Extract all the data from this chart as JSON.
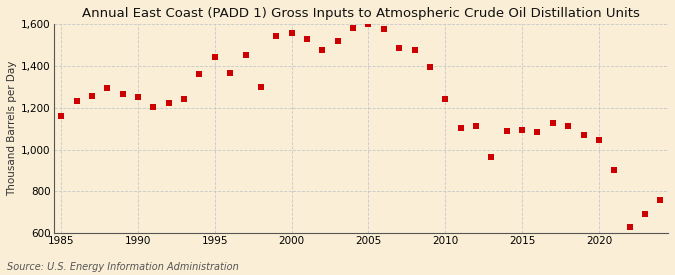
{
  "title": "Annual East Coast (PADD 1) Gross Inputs to Atmospheric Crude Oil Distillation Units",
  "ylabel": "Thousand Barrels per Day",
  "source": "Source: U.S. Energy Information Administration",
  "background_color": "#faefd6",
  "marker_color": "#cc0000",
  "ylim": [
    600,
    1600
  ],
  "yticks": [
    600,
    800,
    1000,
    1200,
    1400,
    1600
  ],
  "xlim": [
    1984.5,
    2024.5
  ],
  "xticks": [
    1985,
    1990,
    1995,
    2000,
    2005,
    2010,
    2015,
    2020
  ],
  "years": [
    1985,
    1986,
    1987,
    1988,
    1989,
    1990,
    1991,
    1992,
    1993,
    1994,
    1995,
    1996,
    1997,
    1998,
    1999,
    2000,
    2001,
    2002,
    2003,
    2004,
    2005,
    2006,
    2007,
    2008,
    2009,
    2010,
    2011,
    2012,
    2013,
    2014,
    2015,
    2016,
    2017,
    2018,
    2019,
    2020,
    2021,
    2022,
    2023,
    2024
  ],
  "values": [
    1160,
    1230,
    1255,
    1295,
    1265,
    1250,
    1205,
    1220,
    1240,
    1360,
    1440,
    1365,
    1450,
    1300,
    1540,
    1555,
    1530,
    1475,
    1520,
    1580,
    1600,
    1575,
    1485,
    1475,
    1395,
    1240,
    1105,
    1110,
    965,
    1090,
    1095,
    1085,
    1125,
    1110,
    1070,
    1045,
    900,
    630,
    690,
    760
  ],
  "grid_color": "#c8c8c8",
  "title_fontsize": 9.5,
  "label_fontsize": 7.5,
  "tick_fontsize": 7.5,
  "source_fontsize": 7.0,
  "marker_size": 14
}
